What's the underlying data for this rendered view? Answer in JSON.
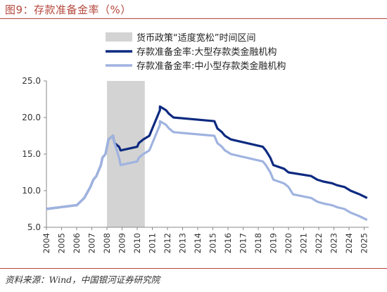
{
  "figure": {
    "title": "图9：存款准备金率（%）",
    "source": "资料来源：Wind，中国银河证券研究院"
  },
  "colors": {
    "title": "#b5473c",
    "large_series": "#0d2a80",
    "small_series": "#9fb3e0",
    "shade": "#d3d3d3"
  },
  "chart_data": {
    "type": "line",
    "xlim": [
      2004,
      2025.3
    ],
    "ylim": [
      5.0,
      25.0
    ],
    "yticks": [
      "5.0",
      "10.0",
      "15.0",
      "20.0",
      "25.0"
    ],
    "xticks": [
      "2004",
      "2005",
      "2006",
      "2007",
      "2008",
      "2009",
      "2010",
      "2011",
      "2012",
      "2013",
      "2014",
      "2015",
      "2016",
      "2017",
      "2018",
      "2019",
      "2020",
      "2021",
      "2022",
      "2023",
      "2024",
      "2025"
    ],
    "grid": false,
    "legend_position": "top-right",
    "shaded_regions": [
      {
        "name": "货币政策“适度宽松”时间区间",
        "x_start": 2008.0,
        "x_end": 2010.5
      }
    ],
    "series": [
      {
        "name": "存款准备金率:大型存款类金融机构",
        "color": "#0d2a80",
        "points": [
          [
            2004.0,
            7.5
          ],
          [
            2005.9,
            8.0
          ],
          [
            2006.0,
            8.0
          ],
          [
            2006.5,
            9.0
          ],
          [
            2006.9,
            10.5
          ],
          [
            2007.1,
            11.5
          ],
          [
            2007.3,
            12.0
          ],
          [
            2007.4,
            12.5
          ],
          [
            2007.5,
            13.0
          ],
          [
            2007.6,
            13.5
          ],
          [
            2007.7,
            14.5
          ],
          [
            2007.9,
            15.0
          ],
          [
            2008.0,
            16.0
          ],
          [
            2008.1,
            17.0
          ],
          [
            2008.4,
            17.5
          ],
          [
            2008.5,
            16.5
          ],
          [
            2008.8,
            16.0
          ],
          [
            2008.9,
            15.5
          ],
          [
            2010.0,
            16.0
          ],
          [
            2010.1,
            16.5
          ],
          [
            2010.4,
            17.0
          ],
          [
            2010.8,
            17.5
          ],
          [
            2010.9,
            18.0
          ],
          [
            2011.0,
            18.5
          ],
          [
            2011.1,
            19.0
          ],
          [
            2011.2,
            19.5
          ],
          [
            2011.3,
            20.0
          ],
          [
            2011.4,
            20.5
          ],
          [
            2011.5,
            21.0
          ],
          [
            2011.5,
            21.5
          ],
          [
            2011.9,
            21.0
          ],
          [
            2012.1,
            20.5
          ],
          [
            2012.4,
            20.0
          ],
          [
            2015.1,
            19.5
          ],
          [
            2015.3,
            18.5
          ],
          [
            2015.6,
            18.0
          ],
          [
            2015.8,
            17.5
          ],
          [
            2016.2,
            17.0
          ],
          [
            2018.3,
            16.0
          ],
          [
            2018.5,
            15.5
          ],
          [
            2018.8,
            14.5
          ],
          [
            2019.0,
            13.5
          ],
          [
            2019.7,
            13.0
          ],
          [
            2020.0,
            12.5
          ],
          [
            2021.5,
            12.0
          ],
          [
            2021.9,
            11.5
          ],
          [
            2022.3,
            11.25
          ],
          [
            2022.9,
            11.0
          ],
          [
            2023.2,
            10.75
          ],
          [
            2023.7,
            10.5
          ],
          [
            2024.1,
            10.0
          ],
          [
            2024.7,
            9.5
          ],
          [
            2025.2,
            9.0
          ]
        ]
      },
      {
        "name": "存款准备金率:中小型存款类金融机构",
        "color": "#9fb3e0",
        "points": [
          [
            2004.0,
            7.5
          ],
          [
            2005.9,
            8.0
          ],
          [
            2006.0,
            8.0
          ],
          [
            2006.5,
            9.0
          ],
          [
            2006.9,
            10.5
          ],
          [
            2007.1,
            11.5
          ],
          [
            2007.3,
            12.0
          ],
          [
            2007.4,
            12.5
          ],
          [
            2007.5,
            13.0
          ],
          [
            2007.6,
            13.5
          ],
          [
            2007.7,
            14.5
          ],
          [
            2007.9,
            15.0
          ],
          [
            2008.0,
            16.0
          ],
          [
            2008.1,
            17.0
          ],
          [
            2008.4,
            17.5
          ],
          [
            2008.5,
            16.5
          ],
          [
            2008.8,
            14.5
          ],
          [
            2008.9,
            13.5
          ],
          [
            2010.0,
            14.0
          ],
          [
            2010.1,
            14.5
          ],
          [
            2010.4,
            15.0
          ],
          [
            2010.8,
            15.5
          ],
          [
            2010.9,
            16.0
          ],
          [
            2011.0,
            16.5
          ],
          [
            2011.1,
            17.0
          ],
          [
            2011.2,
            17.5
          ],
          [
            2011.3,
            18.0
          ],
          [
            2011.4,
            18.5
          ],
          [
            2011.5,
            19.0
          ],
          [
            2011.5,
            19.5
          ],
          [
            2011.9,
            19.0
          ],
          [
            2012.1,
            18.5
          ],
          [
            2012.4,
            18.0
          ],
          [
            2015.1,
            17.5
          ],
          [
            2015.3,
            16.5
          ],
          [
            2015.6,
            16.0
          ],
          [
            2015.8,
            15.5
          ],
          [
            2016.2,
            15.0
          ],
          [
            2018.3,
            14.0
          ],
          [
            2018.5,
            13.5
          ],
          [
            2018.8,
            12.5
          ],
          [
            2019.0,
            11.5
          ],
          [
            2019.7,
            11.0
          ],
          [
            2020.0,
            10.5
          ],
          [
            2020.3,
            9.5
          ],
          [
            2021.5,
            9.0
          ],
          [
            2021.9,
            8.5
          ],
          [
            2022.3,
            8.25
          ],
          [
            2022.9,
            8.0
          ],
          [
            2023.2,
            7.75
          ],
          [
            2023.7,
            7.5
          ],
          [
            2024.1,
            7.0
          ],
          [
            2024.7,
            6.5
          ],
          [
            2025.2,
            6.0
          ]
        ]
      }
    ]
  }
}
